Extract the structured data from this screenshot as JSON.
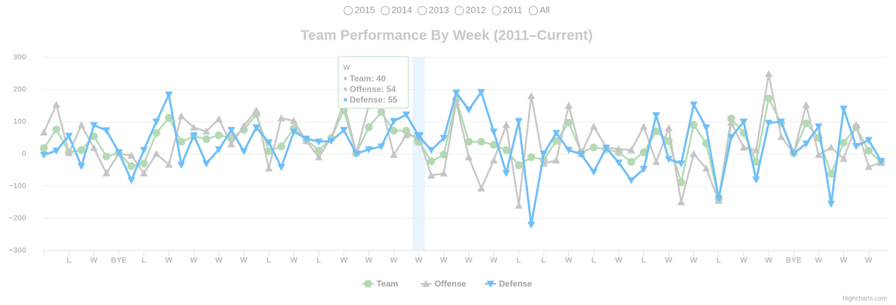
{
  "radio_options": [
    "2015",
    "2014",
    "2013",
    "2012",
    "2011",
    "All"
  ],
  "chart_data": {
    "type": "line",
    "title": "Team Performance By Week (2011–Current)",
    "categories": [
      null,
      null,
      "L",
      null,
      "W",
      null,
      "BYE",
      null,
      "L",
      null,
      "W",
      null,
      "W",
      null,
      "W",
      null,
      "W",
      null,
      "L",
      null,
      "W",
      null,
      "L",
      null,
      "W",
      null,
      "W",
      null,
      "W",
      null,
      "W",
      null,
      "W",
      null,
      "W",
      null,
      "W",
      null,
      "L",
      null,
      "L",
      null,
      "W",
      null,
      "L",
      null,
      "W",
      null,
      "L",
      null,
      "W",
      null,
      "W",
      null,
      "L",
      null,
      "W",
      null,
      "W",
      null,
      "BYE",
      null,
      "W",
      null,
      "W",
      null,
      "W",
      null
    ],
    "series": [
      {
        "name": "Team",
        "color": "#b3dab3",
        "marker": "circle",
        "values": [
          18,
          76,
          5,
          12,
          55,
          -8,
          3,
          -38,
          -30,
          65,
          112,
          38,
          55,
          46,
          58,
          50,
          75,
          123,
          8,
          23,
          80,
          45,
          10,
          50,
          135,
          2,
          83,
          130,
          72,
          72,
          40,
          -23,
          -2,
          170,
          38,
          38,
          28,
          12,
          -35,
          -10,
          -18,
          40,
          97,
          5,
          20,
          15,
          5,
          -25,
          5,
          70,
          40,
          -88,
          90,
          33,
          -140,
          110,
          65,
          -25,
          172,
          95,
          3,
          95,
          50,
          -62,
          35,
          83,
          10,
          -25
        ]
      },
      {
        "name": "Offense",
        "color": "#c6c6c6",
        "marker": "triangle",
        "values": [
          67,
          153,
          3,
          89,
          19,
          -60,
          1,
          -5,
          -60,
          0,
          -33,
          117,
          82,
          70,
          108,
          30,
          87,
          135,
          -45,
          111,
          103,
          40,
          -10,
          50,
          160,
          3,
          150,
          155,
          -3,
          58,
          54,
          -67,
          -60,
          160,
          -10,
          -107,
          -20,
          90,
          -160,
          180,
          -30,
          -20,
          150,
          0,
          85,
          20,
          15,
          12,
          85,
          -25,
          80,
          -150,
          0,
          -45,
          -145,
          97,
          20,
          12,
          248,
          53,
          3,
          152,
          -3,
          20,
          -15,
          90,
          -40,
          -28
        ]
      },
      {
        "name": "Defense",
        "color": "#6fbff7",
        "marker": "triangle-down",
        "values": [
          -3,
          10,
          56,
          -38,
          89,
          73,
          5,
          -82,
          12,
          100,
          184,
          -34,
          58,
          -30,
          14,
          74,
          8,
          82,
          36,
          -41,
          69,
          47,
          38,
          40,
          74,
          1,
          14,
          23,
          102,
          122,
          55,
          12,
          49,
          190,
          137,
          192,
          69,
          -60,
          102,
          -220,
          1,
          65,
          12,
          -1,
          -56,
          19,
          -27,
          -82,
          -47,
          120,
          -16,
          -30,
          153,
          82,
          -138,
          52,
          100,
          -80,
          96,
          100,
          1,
          32,
          85,
          -155,
          140,
          24,
          43,
          -22
        ]
      }
    ],
    "ylim": [
      -300,
      300
    ],
    "yticks": [
      {
        "value": -300,
        "label": "−300"
      },
      {
        "value": -200,
        "label": "−200"
      },
      {
        "value": -100,
        "label": "−100"
      },
      0,
      100,
      200,
      300
    ],
    "grid": true,
    "legend": "bottom",
    "tooltip": {
      "lines": [
        "Team: 40",
        "Offense: 54",
        "Defense: 55"
      ]
    },
    "credits": "Highcharts.com"
  }
}
